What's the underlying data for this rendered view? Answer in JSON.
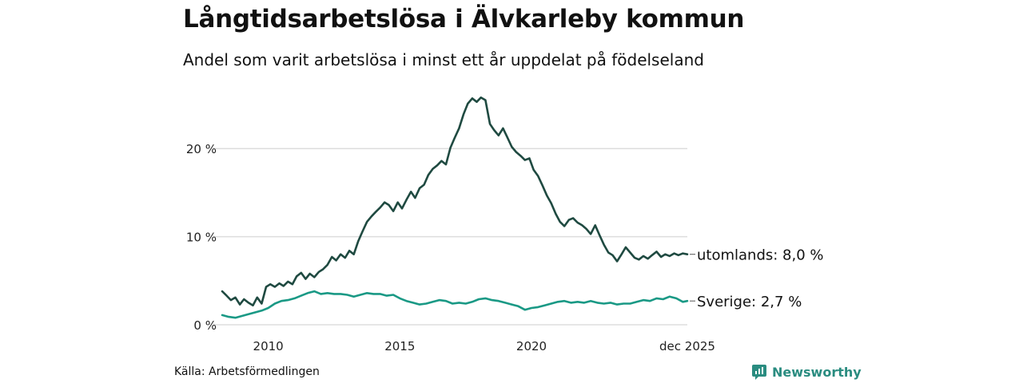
{
  "chart_data": {
    "type": "line",
    "title": "Långtidsarbetslösa i Älvkarleby kommun",
    "subtitle": "Andel som varit arbetslösa i minst ett år uppdelat på födelseland",
    "xlabel": "",
    "ylabel": "",
    "x_range": [
      2008.25,
      2025.92
    ],
    "ylim": [
      0,
      26
    ],
    "y_ticks": [
      {
        "value": 0,
        "label": "0 %"
      },
      {
        "value": 10,
        "label": "10 %"
      },
      {
        "value": 20,
        "label": "20 %"
      }
    ],
    "x_ticks": [
      {
        "value": 2010,
        "label": "2010"
      },
      {
        "value": 2015,
        "label": "2015"
      },
      {
        "value": 2020,
        "label": "2020"
      },
      {
        "value": 2025.92,
        "label": "dec 2025"
      }
    ],
    "grid": "horizontal",
    "series": [
      {
        "name": "utomlands",
        "end_label": "utomlands: 8,0 %",
        "color": "#1f4a41",
        "points": [
          [
            2008.25,
            3.8
          ],
          [
            2008.42,
            3.3
          ],
          [
            2008.58,
            2.8
          ],
          [
            2008.75,
            3.1
          ],
          [
            2008.92,
            2.3
          ],
          [
            2009.08,
            2.9
          ],
          [
            2009.25,
            2.5
          ],
          [
            2009.42,
            2.2
          ],
          [
            2009.58,
            3.1
          ],
          [
            2009.75,
            2.4
          ],
          [
            2009.92,
            4.3
          ],
          [
            2010.08,
            4.6
          ],
          [
            2010.25,
            4.3
          ],
          [
            2010.42,
            4.7
          ],
          [
            2010.58,
            4.4
          ],
          [
            2010.75,
            4.9
          ],
          [
            2010.92,
            4.6
          ],
          [
            2011.08,
            5.5
          ],
          [
            2011.25,
            5.9
          ],
          [
            2011.42,
            5.2
          ],
          [
            2011.58,
            5.8
          ],
          [
            2011.75,
            5.4
          ],
          [
            2011.92,
            6.0
          ],
          [
            2012.08,
            6.3
          ],
          [
            2012.25,
            6.8
          ],
          [
            2012.42,
            7.7
          ],
          [
            2012.58,
            7.3
          ],
          [
            2012.75,
            8.0
          ],
          [
            2012.92,
            7.6
          ],
          [
            2013.08,
            8.4
          ],
          [
            2013.25,
            8.0
          ],
          [
            2013.42,
            9.5
          ],
          [
            2013.58,
            10.6
          ],
          [
            2013.75,
            11.7
          ],
          [
            2013.92,
            12.3
          ],
          [
            2014.08,
            12.8
          ],
          [
            2014.25,
            13.3
          ],
          [
            2014.42,
            13.9
          ],
          [
            2014.58,
            13.6
          ],
          [
            2014.75,
            12.9
          ],
          [
            2014.92,
            13.9
          ],
          [
            2015.08,
            13.2
          ],
          [
            2015.25,
            14.2
          ],
          [
            2015.42,
            15.1
          ],
          [
            2015.58,
            14.4
          ],
          [
            2015.75,
            15.5
          ],
          [
            2015.92,
            15.9
          ],
          [
            2016.08,
            17.0
          ],
          [
            2016.25,
            17.7
          ],
          [
            2016.42,
            18.1
          ],
          [
            2016.58,
            18.6
          ],
          [
            2016.75,
            18.2
          ],
          [
            2016.92,
            20.1
          ],
          [
            2017.08,
            21.2
          ],
          [
            2017.25,
            22.3
          ],
          [
            2017.42,
            23.9
          ],
          [
            2017.58,
            25.1
          ],
          [
            2017.75,
            25.7
          ],
          [
            2017.92,
            25.3
          ],
          [
            2018.08,
            25.8
          ],
          [
            2018.25,
            25.5
          ],
          [
            2018.42,
            22.8
          ],
          [
            2018.58,
            22.1
          ],
          [
            2018.75,
            21.5
          ],
          [
            2018.92,
            22.3
          ],
          [
            2019.08,
            21.3
          ],
          [
            2019.25,
            20.2
          ],
          [
            2019.42,
            19.6
          ],
          [
            2019.58,
            19.2
          ],
          [
            2019.75,
            18.7
          ],
          [
            2019.92,
            18.9
          ],
          [
            2020.08,
            17.6
          ],
          [
            2020.25,
            16.9
          ],
          [
            2020.42,
            15.8
          ],
          [
            2020.58,
            14.7
          ],
          [
            2020.75,
            13.8
          ],
          [
            2020.92,
            12.6
          ],
          [
            2021.08,
            11.7
          ],
          [
            2021.25,
            11.2
          ],
          [
            2021.42,
            11.9
          ],
          [
            2021.58,
            12.1
          ],
          [
            2021.75,
            11.6
          ],
          [
            2021.92,
            11.3
          ],
          [
            2022.08,
            10.9
          ],
          [
            2022.25,
            10.3
          ],
          [
            2022.42,
            11.3
          ],
          [
            2022.58,
            10.2
          ],
          [
            2022.75,
            9.1
          ],
          [
            2022.92,
            8.2
          ],
          [
            2023.08,
            7.9
          ],
          [
            2023.25,
            7.2
          ],
          [
            2023.42,
            8.0
          ],
          [
            2023.58,
            8.8
          ],
          [
            2023.75,
            8.2
          ],
          [
            2023.92,
            7.6
          ],
          [
            2024.08,
            7.4
          ],
          [
            2024.25,
            7.8
          ],
          [
            2024.42,
            7.5
          ],
          [
            2024.58,
            7.9
          ],
          [
            2024.75,
            8.3
          ],
          [
            2024.92,
            7.7
          ],
          [
            2025.08,
            8.0
          ],
          [
            2025.25,
            7.8
          ],
          [
            2025.42,
            8.1
          ],
          [
            2025.58,
            7.9
          ],
          [
            2025.75,
            8.1
          ],
          [
            2025.92,
            8.0
          ]
        ]
      },
      {
        "name": "Sverige",
        "end_label": "Sverige: 2,7 %",
        "color": "#1a9985",
        "points": [
          [
            2008.25,
            1.1
          ],
          [
            2008.5,
            0.9
          ],
          [
            2008.75,
            0.8
          ],
          [
            2009.0,
            1.0
          ],
          [
            2009.25,
            1.2
          ],
          [
            2009.5,
            1.4
          ],
          [
            2009.75,
            1.6
          ],
          [
            2010.0,
            1.9
          ],
          [
            2010.25,
            2.4
          ],
          [
            2010.5,
            2.7
          ],
          [
            2010.75,
            2.8
          ],
          [
            2011.0,
            3.0
          ],
          [
            2011.25,
            3.3
          ],
          [
            2011.5,
            3.6
          ],
          [
            2011.75,
            3.8
          ],
          [
            2012.0,
            3.5
          ],
          [
            2012.25,
            3.6
          ],
          [
            2012.5,
            3.5
          ],
          [
            2012.75,
            3.5
          ],
          [
            2013.0,
            3.4
          ],
          [
            2013.25,
            3.2
          ],
          [
            2013.5,
            3.4
          ],
          [
            2013.75,
            3.6
          ],
          [
            2014.0,
            3.5
          ],
          [
            2014.25,
            3.5
          ],
          [
            2014.5,
            3.3
          ],
          [
            2014.75,
            3.4
          ],
          [
            2015.0,
            3.0
          ],
          [
            2015.25,
            2.7
          ],
          [
            2015.5,
            2.5
          ],
          [
            2015.75,
            2.3
          ],
          [
            2016.0,
            2.4
          ],
          [
            2016.25,
            2.6
          ],
          [
            2016.5,
            2.8
          ],
          [
            2016.75,
            2.7
          ],
          [
            2017.0,
            2.4
          ],
          [
            2017.25,
            2.5
          ],
          [
            2017.5,
            2.4
          ],
          [
            2017.75,
            2.6
          ],
          [
            2018.0,
            2.9
          ],
          [
            2018.25,
            3.0
          ],
          [
            2018.5,
            2.8
          ],
          [
            2018.75,
            2.7
          ],
          [
            2019.0,
            2.5
          ],
          [
            2019.25,
            2.3
          ],
          [
            2019.5,
            2.1
          ],
          [
            2019.75,
            1.7
          ],
          [
            2020.0,
            1.9
          ],
          [
            2020.25,
            2.0
          ],
          [
            2020.5,
            2.2
          ],
          [
            2020.75,
            2.4
          ],
          [
            2021.0,
            2.6
          ],
          [
            2021.25,
            2.7
          ],
          [
            2021.5,
            2.5
          ],
          [
            2021.75,
            2.6
          ],
          [
            2022.0,
            2.5
          ],
          [
            2022.25,
            2.7
          ],
          [
            2022.5,
            2.5
          ],
          [
            2022.75,
            2.4
          ],
          [
            2023.0,
            2.5
          ],
          [
            2023.25,
            2.3
          ],
          [
            2023.5,
            2.4
          ],
          [
            2023.75,
            2.4
          ],
          [
            2024.0,
            2.6
          ],
          [
            2024.25,
            2.8
          ],
          [
            2024.5,
            2.7
          ],
          [
            2024.75,
            3.0
          ],
          [
            2025.0,
            2.9
          ],
          [
            2025.25,
            3.2
          ],
          [
            2025.5,
            3.0
          ],
          [
            2025.75,
            2.6
          ],
          [
            2025.92,
            2.7
          ]
        ]
      }
    ],
    "source": "Källa: Arbetsförmedlingen"
  },
  "branding": {
    "name": "Newsworthy",
    "icon": "newsworthy-logo-icon",
    "color": "#2a8c80"
  }
}
